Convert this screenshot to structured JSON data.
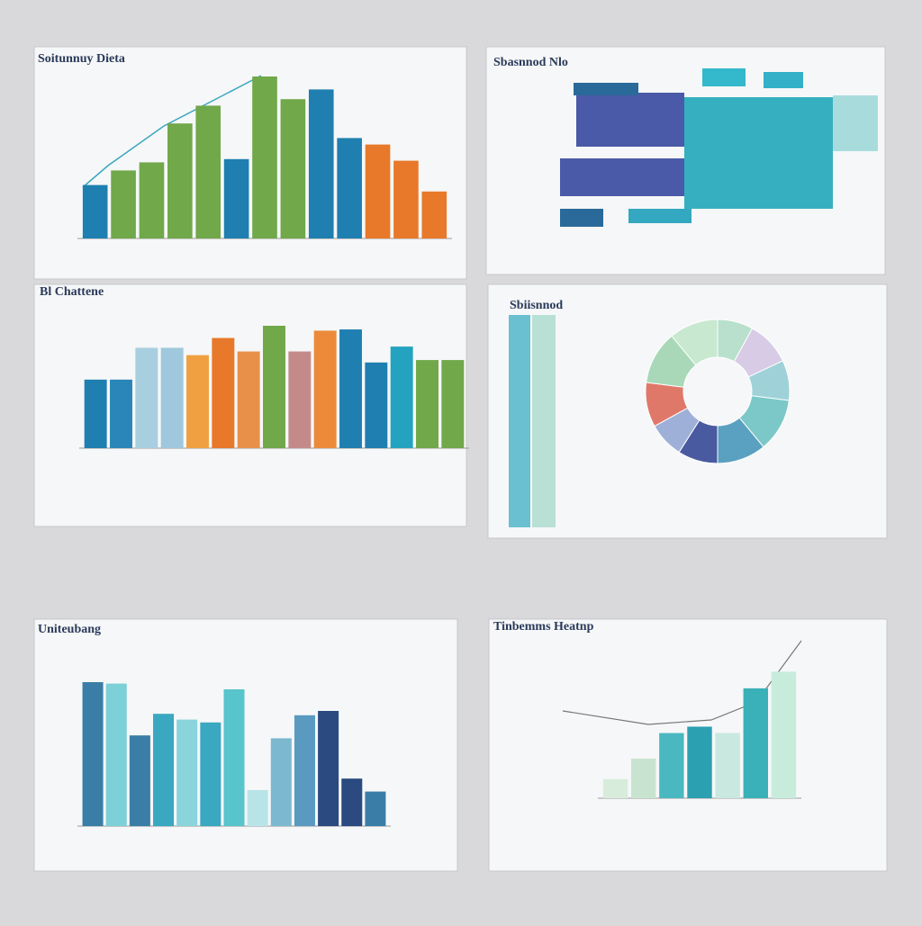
{
  "chart_data": [
    {
      "type": "bar",
      "title": "Soitunnuy Dieta",
      "ylim": [
        0,
        100
      ],
      "values": [
        33,
        42,
        47,
        71,
        82,
        49,
        100,
        86,
        92,
        62,
        58,
        48,
        29
      ],
      "colors": [
        "#1f7fb0",
        "#70a84a",
        "#70a84a",
        "#70a84a",
        "#70a84a",
        "#1f7fb0",
        "#70a84a",
        "#70a84a",
        "#1f7fb0",
        "#1f7fb0",
        "#e8782a",
        "#e8782a",
        "#e8782a"
      ]
    },
    {
      "type": "heatmap",
      "title": "Sbasnnod Nlo"
    },
    {
      "type": "bar",
      "title": "Bl Chattene",
      "ylim": [
        0,
        100
      ],
      "values": [
        56,
        56,
        82,
        82,
        76,
        90,
        79,
        100,
        79,
        96,
        97,
        70,
        83,
        72,
        72
      ],
      "colors": [
        "#1f7fb0",
        "#2a86b8",
        "#a8cfe0",
        "#9fc8dc",
        "#f0a040",
        "#e8782a",
        "#e8904a",
        "#70a84a",
        "#c48a8a",
        "#ec8a3a",
        "#1f7fb0",
        "#1f7fb0",
        "#23a3c0",
        "#70a84a",
        "#70a84a"
      ]
    },
    {
      "type": "pie",
      "title": "Sbiisnnod",
      "values": [
        8,
        10,
        9,
        12,
        11,
        9,
        8,
        10,
        12,
        11
      ],
      "colors": [
        "#b8e0cc",
        "#d8cbe6",
        "#9ed2d8",
        "#7cc8c8",
        "#5aa0c0",
        "#4a5aa0",
        "#9fb0d8",
        "#e0786a",
        "#a8d8b8",
        "#c8e8d0"
      ]
    },
    {
      "type": "bar",
      "title": "Uniteubang",
      "ylim": [
        0,
        100
      ],
      "values": [
        100,
        99,
        63,
        78,
        74,
        72,
        95,
        25,
        61,
        77,
        80,
        33,
        24
      ],
      "colors": [
        "#3a7ea8",
        "#7cd0d8",
        "#3a7ea8",
        "#3aa8c0",
        "#8ad4dc",
        "#3aa8c0",
        "#58c4cc",
        "#b8e4e8",
        "#7cb8d0",
        "#5a9ac0",
        "#2a4a80",
        "#2a4a80",
        "#3a7ea8"
      ]
    },
    {
      "type": "bar",
      "title": "Tinbemms Heatnp",
      "ylim": [
        0,
        100
      ],
      "values": [
        15,
        31,
        51,
        56,
        51,
        86,
        99
      ],
      "colors": [
        "#d8ecdc",
        "#c8e4d0",
        "#4ab8c0",
        "#2aa0b0",
        "#c8e8e0",
        "#3ab0b8",
        "#c8ecdc"
      ]
    }
  ]
}
